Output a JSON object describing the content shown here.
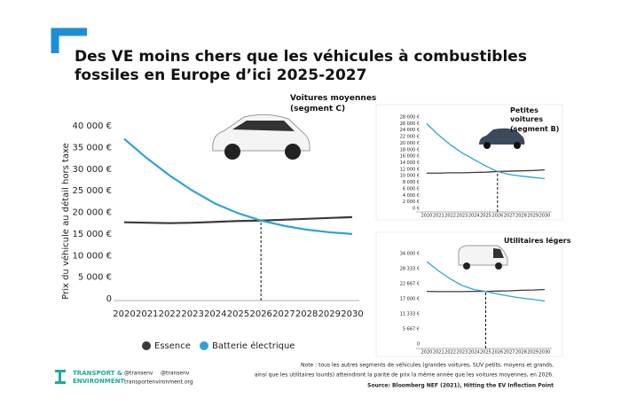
{
  "header": {
    "title": "Des VE moins chers que les véhicules à combustibles fossiles en Europe d’ici 2025-2027"
  },
  "chart_data": [
    {
      "type": "line",
      "title": "Voitures moyennes (segment C)",
      "y_label": "Prix du véhicule au détail hors taxe",
      "categories": [
        "2020",
        "2021",
        "2022",
        "2023",
        "2024",
        "2025",
        "2026",
        "2027",
        "2028",
        "2029",
        "2030"
      ],
      "series": [
        {
          "name": "Essence",
          "color": "#3a3a3a",
          "values": [
            17700,
            17600,
            17500,
            17600,
            17800,
            18000,
            18100,
            18300,
            18500,
            18700,
            18900
          ]
        },
        {
          "name": "Batterie électrique",
          "color": "#2fa3d8",
          "values": [
            37000,
            32500,
            28500,
            25000,
            22000,
            19800,
            18100,
            16900,
            16000,
            15400,
            15000
          ]
        }
      ],
      "ylim": [
        0,
        40000
      ],
      "yticks": [
        0,
        {
          "value": 5000,
          "label": "5 000 €"
        },
        {
          "value": 10000,
          "label": "10 000 €"
        },
        {
          "value": 15000,
          "label": "15 000 €"
        },
        {
          "value": 20000,
          "label": "20 000 €"
        },
        {
          "value": 25000,
          "label": "25 000 €"
        },
        {
          "value": 30000,
          "label": "30 000 €"
        },
        {
          "value": 35000,
          "label": "35 000 €"
        },
        {
          "value": 40000,
          "label": "40 000 €"
        }
      ],
      "parity_index": 6,
      "grid": false,
      "legend": "bottom"
    },
    {
      "type": "line",
      "title": "Petites voitures (segment B)",
      "categories": [
        "2020",
        "2021",
        "2022",
        "2023",
        "2024",
        "2025",
        "2026",
        "2027",
        "2028",
        "2029",
        "2030"
      ],
      "series": [
        {
          "color": "#3a3a3a",
          "values": [
            10800,
            10800,
            10900,
            10900,
            11000,
            11100,
            11300,
            11400,
            11500,
            11600,
            11800
          ]
        },
        {
          "color": "#2fa3d8",
          "values": [
            26000,
            22500,
            19500,
            17000,
            15000,
            13000,
            11300,
            10400,
            9900,
            9500,
            9100
          ]
        }
      ],
      "ylim": [
        0,
        28000
      ],
      "yticks": [
        {
          "value": 0,
          "label": "0 €"
        },
        {
          "value": 2000,
          "label": "2 000 €"
        },
        {
          "value": 4000,
          "label": "4 000 €"
        },
        {
          "value": 6000,
          "label": "6 000 €"
        },
        {
          "value": 8000,
          "label": "8 000 €"
        },
        {
          "value": 10000,
          "label": "10 000 €"
        },
        {
          "value": 12000,
          "label": "12 000 €"
        },
        {
          "value": 14000,
          "label": "14 000 €"
        },
        {
          "value": 16000,
          "label": "16 000 €"
        },
        {
          "value": 18000,
          "label": "18 000 €"
        },
        {
          "value": 20000,
          "label": "20 000 €"
        },
        {
          "value": 22000,
          "label": "22 000 €"
        },
        {
          "value": 24000,
          "label": "24 000 €"
        },
        {
          "value": 26000,
          "label": "26 000 €"
        },
        {
          "value": 28000,
          "label": "28 000 €"
        }
      ],
      "parity_index": 6,
      "grid": false
    },
    {
      "type": "line",
      "title": "Utilitaires légers",
      "categories": [
        "2020",
        "2021",
        "2022",
        "2023",
        "2024",
        "2025",
        "2026",
        "2027",
        "2028",
        "2029",
        "2030"
      ],
      "series": [
        {
          "color": "#3a3a3a",
          "values": [
            19800,
            19700,
            19700,
            19700,
            19800,
            19800,
            19900,
            20000,
            20200,
            20300,
            20500
          ]
        },
        {
          "color": "#2fa3d8",
          "values": [
            31000,
            27500,
            24500,
            22000,
            20500,
            19800,
            18800,
            18000,
            17300,
            16800,
            16200
          ]
        }
      ],
      "ylim": [
        0,
        34000
      ],
      "yticks": [
        0,
        {
          "value": 5667,
          "label": "5 667 €"
        },
        {
          "value": 11333,
          "label": "11 333 €"
        },
        {
          "value": 17000,
          "label": "17 000 €"
        },
        {
          "value": 22667,
          "label": "22 667 €"
        },
        {
          "value": 28333,
          "label": "28 333 €"
        },
        {
          "value": 34000,
          "label": "34 000 €"
        }
      ],
      "parity_index": 5,
      "grid": false
    }
  ],
  "footer": {
    "logo": [
      "TRANSPORT &",
      "ENVIRONMENT"
    ],
    "twitter": "@transenv",
    "facebook": "@transenv",
    "website": "transportenvironment.org",
    "note": [
      "Note : tous les autres segments de véhicules (grandes voitures, SUV petits, moyens et grands,",
      "ainsi que les utilitaires lourds) atteindront la parité de prix la même année que les voitures moyennes, en 2026."
    ],
    "source": "Source: Bloomberg NEF (2021), Hitting the EV Inflection Point"
  }
}
